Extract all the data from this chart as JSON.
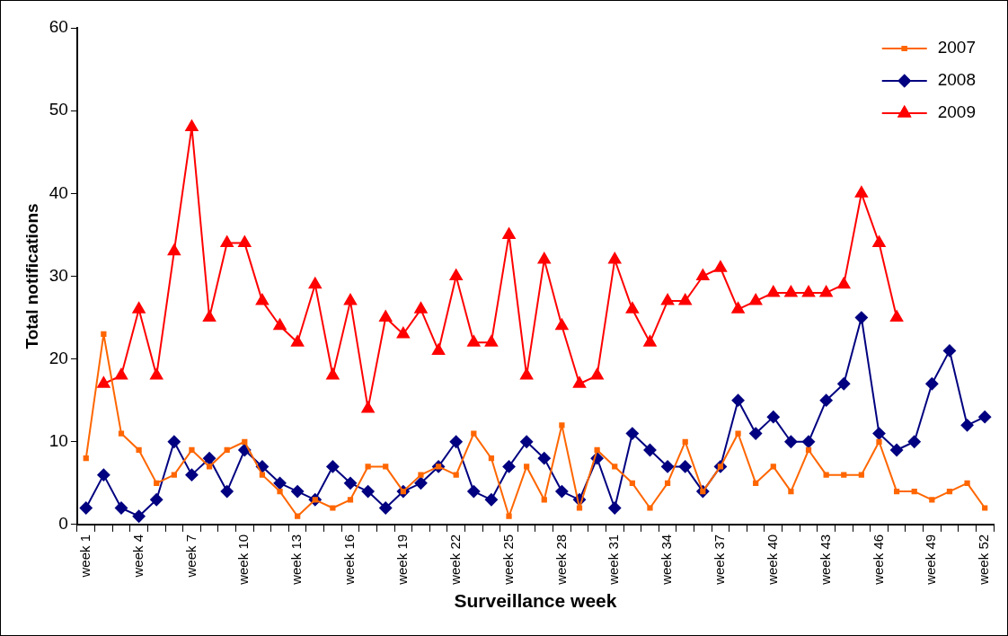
{
  "chart_data": {
    "type": "line",
    "xlabel": "Surveillance week",
    "ylabel": "Total notifications",
    "categories": [
      "week 1",
      null,
      null,
      "week 4",
      null,
      null,
      "week 7",
      null,
      null,
      "week 10",
      null,
      null,
      "week 13",
      null,
      null,
      "week 16",
      null,
      null,
      "week 19",
      null,
      null,
      "week 22",
      null,
      null,
      "week 25",
      null,
      null,
      "week 28",
      null,
      null,
      "week 31",
      null,
      null,
      "week 34",
      null,
      null,
      "week 37",
      null,
      null,
      "week 40",
      null,
      null,
      "week 43",
      null,
      null,
      "week 46",
      null,
      null,
      "week 49",
      null,
      null,
      "week 52"
    ],
    "ylim": [
      0,
      60
    ],
    "yticks": [
      0,
      10,
      20,
      30,
      40,
      50,
      60
    ],
    "grid": false,
    "legend": "top right",
    "series": [
      {
        "name": "2007",
        "color": "#ff6600",
        "marker": "square",
        "values": [
          8,
          23,
          11,
          9,
          5,
          6,
          9,
          7,
          9,
          10,
          6,
          4,
          1,
          3,
          2,
          3,
          7,
          7,
          4,
          6,
          7,
          6,
          11,
          8,
          1,
          7,
          3,
          12,
          2,
          9,
          7,
          5,
          2,
          5,
          10,
          4,
          7,
          11,
          5,
          7,
          4,
          9,
          6,
          6,
          6,
          10,
          4,
          4,
          3,
          4,
          5,
          2
        ]
      },
      {
        "name": "2008",
        "color": "#000080",
        "marker": "diamond",
        "values": [
          2,
          6,
          2,
          1,
          3,
          10,
          6,
          8,
          4,
          9,
          7,
          5,
          4,
          3,
          7,
          5,
          4,
          2,
          4,
          5,
          7,
          10,
          4,
          3,
          7,
          10,
          8,
          4,
          3,
          8,
          2,
          11,
          9,
          7,
          7,
          4,
          7,
          15,
          11,
          13,
          10,
          10,
          15,
          17,
          25,
          11,
          9,
          10,
          17,
          21,
          12,
          13
        ]
      },
      {
        "name": "2009",
        "color": "#ff0000",
        "marker": "triangle",
        "values": [
          null,
          17,
          18,
          26,
          18,
          33,
          48,
          25,
          34,
          34,
          27,
          24,
          22,
          29,
          18,
          27,
          14,
          25,
          23,
          26,
          21,
          30,
          22,
          22,
          35,
          18,
          32,
          24,
          17,
          18,
          32,
          26,
          22,
          27,
          27,
          30,
          31,
          26,
          27,
          28,
          28,
          28,
          28,
          29,
          40,
          34,
          25,
          null,
          null,
          null,
          null,
          null
        ]
      }
    ]
  }
}
